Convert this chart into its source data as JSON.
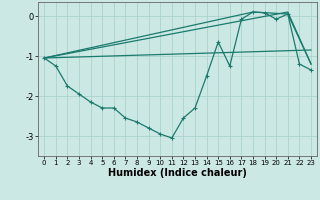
{
  "xlabel": "Humidex (Indice chaleur)",
  "bg_color": "#cce8e4",
  "line_color": "#1a7a6e",
  "grid_color": "#aad4cc",
  "xlim": [
    -0.5,
    23.5
  ],
  "ylim": [
    -3.5,
    0.35
  ],
  "xticks": [
    0,
    1,
    2,
    3,
    4,
    5,
    6,
    7,
    8,
    9,
    10,
    11,
    12,
    13,
    14,
    15,
    16,
    17,
    18,
    19,
    20,
    21,
    22,
    23
  ],
  "yticks": [
    0,
    -1,
    -2,
    -3
  ],
  "series1_x": [
    0,
    1,
    2,
    3,
    4,
    5,
    6,
    7,
    8,
    9,
    10,
    11,
    12,
    13,
    14,
    15,
    16,
    17,
    18,
    19,
    20,
    21,
    22,
    23
  ],
  "series1_y": [
    -1.05,
    -1.25,
    -1.75,
    -1.95,
    -2.15,
    -2.3,
    -2.3,
    -2.55,
    -2.65,
    -2.8,
    -2.95,
    -3.05,
    -2.55,
    -2.3,
    -1.5,
    -0.65,
    -1.25,
    -0.08,
    0.1,
    0.08,
    -0.08,
    0.05,
    -1.2,
    -1.35
  ],
  "series2_x": [
    0,
    23
  ],
  "series2_y": [
    -1.05,
    -0.85
  ],
  "series3_x": [
    0,
    21,
    23
  ],
  "series3_y": [
    -1.05,
    0.1,
    -1.2
  ],
  "series4_x": [
    0,
    18,
    21,
    23
  ],
  "series4_y": [
    -1.05,
    0.1,
    0.05,
    -1.2
  ]
}
